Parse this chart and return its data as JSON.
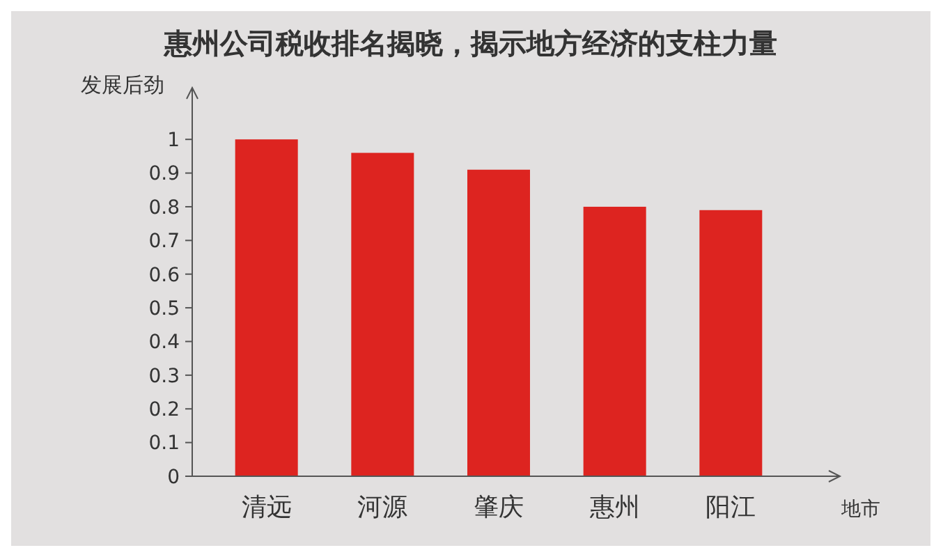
{
  "chart_data": {
    "type": "bar",
    "title": "惠州公司税收排名揭晓，揭示地方经济的支柱力量",
    "ylabel": "发展后劲",
    "xlabel": "地市",
    "categories": [
      "清远",
      "河源",
      "肇庆",
      "惠州",
      "阳江"
    ],
    "values": [
      1.0,
      0.96,
      0.91,
      0.8,
      0.79
    ],
    "color": "#dd2420",
    "ylim": [
      0,
      1.05
    ],
    "yticks": [
      0,
      0.1,
      0.2,
      0.3,
      0.4,
      0.5,
      0.6,
      0.7,
      0.8,
      0.9,
      1
    ],
    "grid": false
  }
}
